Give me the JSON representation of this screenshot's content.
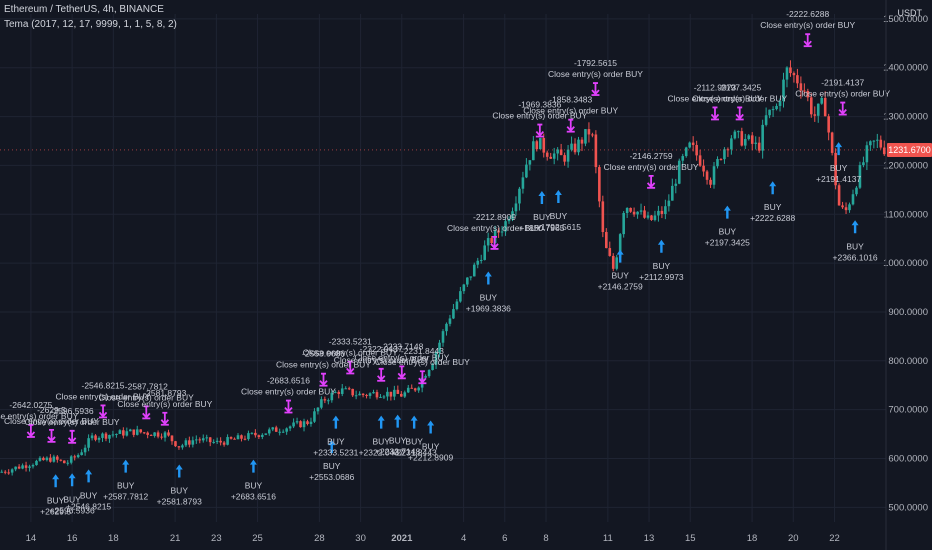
{
  "header": {
    "title": "Ethereum / TetherUS, 4h, BINANCE",
    "indicator": "Tema (2017, 12, 17, 9999, 1, 1, 5, 8, 2)",
    "unit": "USDT"
  },
  "colors": {
    "background": "#131722",
    "up": "#26a69a",
    "down": "#ef5350",
    "buy_arrow": "#2196f3",
    "close_marker": "#e040fb",
    "grid": "#1f2433"
  },
  "chart_data": {
    "type": "candlestick",
    "y_axis_label": "USDT",
    "ylim": [
      470,
      1510
    ],
    "y_ticks": [
      "1500.0000",
      "1400.0000",
      "1300.0000",
      "1200.0000",
      "1100.0000",
      "1000.0000",
      "900.0000",
      "800.0000",
      "700.0000",
      "600.0000",
      "500.0000"
    ],
    "y_tick_values": [
      1500,
      1400,
      1300,
      1200,
      1100,
      1000,
      900,
      800,
      700,
      600,
      500
    ],
    "x_range": [
      12.5,
      55.5
    ],
    "x_ticks": [
      {
        "label": "14",
        "x": 14
      },
      {
        "label": "16",
        "x": 16
      },
      {
        "label": "18",
        "x": 18
      },
      {
        "label": "21",
        "x": 21
      },
      {
        "label": "23",
        "x": 23
      },
      {
        "label": "25",
        "x": 25
      },
      {
        "label": "28",
        "x": 28
      },
      {
        "label": "30",
        "x": 30
      },
      {
        "label": "2021",
        "x": 32
      },
      {
        "label": "4",
        "x": 35
      },
      {
        "label": "6",
        "x": 37
      },
      {
        "label": "8",
        "x": 39
      },
      {
        "label": "11",
        "x": 42
      },
      {
        "label": "13",
        "x": 44
      },
      {
        "label": "15",
        "x": 46
      },
      {
        "label": "18",
        "x": 49
      },
      {
        "label": "20",
        "x": 51
      },
      {
        "label": "22",
        "x": 53
      }
    ],
    "last_price": "1231.6700",
    "last_price_value": 1231.67,
    "price_path": [
      [
        12.5,
        572
      ],
      [
        14,
        590
      ],
      [
        15,
        600
      ],
      [
        15.7,
        590
      ],
      [
        16.3,
        608
      ],
      [
        17,
        645
      ],
      [
        18,
        650
      ],
      [
        19,
        655
      ],
      [
        19.8,
        652
      ],
      [
        20.5,
        650
      ],
      [
        21.2,
        625
      ],
      [
        22,
        640
      ],
      [
        23,
        632
      ],
      [
        24,
        640
      ],
      [
        25,
        650
      ],
      [
        26,
        660
      ],
      [
        26.8,
        668
      ],
      [
        27.5,
        675
      ],
      [
        28.2,
        720
      ],
      [
        29,
        740
      ],
      [
        30,
        730
      ],
      [
        31,
        735
      ],
      [
        32,
        730
      ],
      [
        32.7,
        745
      ],
      [
        33.5,
        800
      ],
      [
        34.2,
        880
      ],
      [
        35,
        950
      ],
      [
        35.5,
        990
      ],
      [
        36,
        1030
      ],
      [
        37,
        1080
      ],
      [
        37.5,
        1130
      ],
      [
        38,
        1200
      ],
      [
        38.5,
        1250
      ],
      [
        39,
        1230
      ],
      [
        39.8,
        1215
      ],
      [
        40.5,
        1240
      ],
      [
        41.2,
        1275
      ],
      [
        41.5,
        1160
      ],
      [
        41.8,
        1040
      ],
      [
        42.3,
        985
      ],
      [
        42.8,
        1120
      ],
      [
        43.3,
        1110
      ],
      [
        44,
        1085
      ],
      [
        44.8,
        1110
      ],
      [
        45.5,
        1200
      ],
      [
        46,
        1240
      ],
      [
        46.5,
        1210
      ],
      [
        47,
        1170
      ],
      [
        47.5,
        1225
      ],
      [
        48,
        1260
      ],
      [
        48.8,
        1250
      ],
      [
        49.3,
        1235
      ],
      [
        49.7,
        1300
      ],
      [
        50.2,
        1320
      ],
      [
        50.7,
        1395
      ],
      [
        51.1,
        1380
      ],
      [
        51.5,
        1360
      ],
      [
        52,
        1300
      ],
      [
        52.5,
        1330
      ],
      [
        52.8,
        1245
      ],
      [
        53.2,
        1120
      ],
      [
        53.5,
        1100
      ],
      [
        54,
        1160
      ],
      [
        54.6,
        1230
      ],
      [
        55,
        1250
      ],
      [
        55.5,
        1232
      ]
    ],
    "annotations": [
      {
        "type": "close",
        "x": 14,
        "price": 640,
        "lines": [
          "-2642.0275",
          "Close entry(s) order BUY"
        ]
      },
      {
        "type": "close",
        "x": 15,
        "price": 630,
        "lines": [
          "-2629.5",
          "Close entry(s) order BUY"
        ]
      },
      {
        "type": "close",
        "x": 16,
        "price": 628,
        "lines": [
          "-2596.5936",
          "Close entry(s) order BUY"
        ]
      },
      {
        "type": "buy",
        "x": 15.2,
        "price": 580,
        "lines": [
          "BUY",
          "+2629.5"
        ]
      },
      {
        "type": "buy",
        "x": 16,
        "price": 582,
        "lines": [
          "BUY",
          "+2596.5936"
        ]
      },
      {
        "type": "buy",
        "x": 16.8,
        "price": 590,
        "lines": [
          "BUY",
          "+2546.8215"
        ]
      },
      {
        "type": "close",
        "x": 17.5,
        "price": 680,
        "lines": [
          "-2546.8215",
          "Close entry(s) order BUY"
        ]
      },
      {
        "type": "buy",
        "x": 18.6,
        "price": 610,
        "lines": [
          "BUY",
          "+2587.7812"
        ]
      },
      {
        "type": "close",
        "x": 19.6,
        "price": 678,
        "lines": [
          "-2587.7812",
          "Close entry(s) order BUY"
        ]
      },
      {
        "type": "close",
        "x": 20.5,
        "price": 665,
        "lines": [
          "-2581.8793",
          "Close entry(s) order BUY"
        ]
      },
      {
        "type": "buy",
        "x": 21.2,
        "price": 600,
        "lines": [
          "BUY",
          "+2581.8793"
        ]
      },
      {
        "type": "buy",
        "x": 24.8,
        "price": 610,
        "lines": [
          "BUY",
          "+2683.6516"
        ]
      },
      {
        "type": "close",
        "x": 26.5,
        "price": 690,
        "lines": [
          "-2683.6516",
          "Close entry(s) order BUY"
        ]
      },
      {
        "type": "buy",
        "x": 28.6,
        "price": 650,
        "lines": [
          "BUY",
          "+2553.0686"
        ]
      },
      {
        "type": "close",
        "x": 28.2,
        "price": 745,
        "lines": [
          "-2553.0686",
          "Close entry(s) order BUY"
        ]
      },
      {
        "type": "close",
        "x": 29.5,
        "price": 770,
        "lines": [
          "-2333.5231",
          "Close entry(s) order BUY"
        ]
      },
      {
        "type": "buy",
        "x": 28.8,
        "price": 700,
        "lines": [
          "BUY",
          "+2333.5231"
        ]
      },
      {
        "type": "close",
        "x": 31.0,
        "price": 755,
        "lines": [
          "-2322.0437",
          "Close entry(s) order BUY"
        ]
      },
      {
        "type": "close",
        "x": 32.0,
        "price": 760,
        "lines": [
          "-2233.7148",
          "Close entry(s) order BUY"
        ]
      },
      {
        "type": "close",
        "x": 33.0,
        "price": 750,
        "lines": [
          "-2231.8443",
          "Close entry(s) order BUY"
        ]
      },
      {
        "type": "buy",
        "x": 31.0,
        "price": 700,
        "lines": [
          "BUY",
          "+2322.0437"
        ]
      },
      {
        "type": "buy",
        "x": 31.8,
        "price": 702,
        "lines": [
          "BUY",
          "+2233.7148"
        ]
      },
      {
        "type": "buy",
        "x": 32.6,
        "price": 700,
        "lines": [
          "BUY",
          "+2231.8443"
        ]
      },
      {
        "type": "buy",
        "x": 33.4,
        "price": 690,
        "lines": [
          "BUY",
          "+2212.8909"
        ]
      },
      {
        "type": "close",
        "x": 36.5,
        "price": 1025,
        "lines": [
          "-2212.8909",
          "Close entry(s) order BUY"
        ]
      },
      {
        "type": "buy",
        "x": 36.2,
        "price": 995,
        "lines": [
          "BUY",
          "+1969.3836"
        ]
      },
      {
        "type": "close",
        "x": 38.7,
        "price": 1255,
        "lines": [
          "-1969.3836",
          "Close entry(s) order BUY"
        ]
      },
      {
        "type": "buy",
        "x": 38.8,
        "price": 1160,
        "lines": [
          "BUY",
          "+1850.7965"
        ]
      },
      {
        "type": "buy",
        "x": 39.6,
        "price": 1162,
        "lines": [
          "BUY",
          "+1792.5615"
        ]
      },
      {
        "type": "close",
        "x": 40.2,
        "price": 1265,
        "lines": [
          "-1858.3483",
          "Close entry(s) order BUY"
        ]
      },
      {
        "type": "close",
        "x": 41.4,
        "price": 1340,
        "lines": [
          "-1792.5615",
          "Close entry(s) order BUY"
        ]
      },
      {
        "type": "buy",
        "x": 42.6,
        "price": 1040,
        "lines": [
          "BUY",
          "+2146.2759"
        ]
      },
      {
        "type": "close",
        "x": 44.1,
        "price": 1150,
        "lines": [
          "-2146.2759",
          "Close entry(s) order BUY"
        ]
      },
      {
        "type": "buy",
        "x": 44.6,
        "price": 1060,
        "lines": [
          "BUY",
          "+2112.9973"
        ]
      },
      {
        "type": "close",
        "x": 47.2,
        "price": 1290,
        "lines": [
          "-2112.9973",
          "Close entry(s) order BUY"
        ]
      },
      {
        "type": "buy",
        "x": 47.8,
        "price": 1130,
        "lines": [
          "BUY",
          "+2197.3425"
        ]
      },
      {
        "type": "close",
        "x": 48.4,
        "price": 1290,
        "lines": [
          "-2197.3425",
          "Close entry(s) order BUY"
        ]
      },
      {
        "type": "buy",
        "x": 50.0,
        "price": 1180,
        "lines": [
          "BUY",
          "+2222.6288"
        ]
      },
      {
        "type": "close",
        "x": 51.7,
        "price": 1440,
        "lines": [
          "-2222.6288",
          "Close entry(s) order BUY"
        ]
      },
      {
        "type": "close",
        "x": 53.4,
        "price": 1300,
        "lines": [
          "-2191.4137",
          "Close entry(s) order BUY"
        ]
      },
      {
        "type": "buy",
        "x": 53.2,
        "price": 1260,
        "lines": [
          "BUY",
          "+2191.4137"
        ]
      },
      {
        "type": "buy",
        "x": 54.0,
        "price": 1100,
        "lines": [
          "BUY",
          "+2366.1016"
        ]
      }
    ]
  }
}
